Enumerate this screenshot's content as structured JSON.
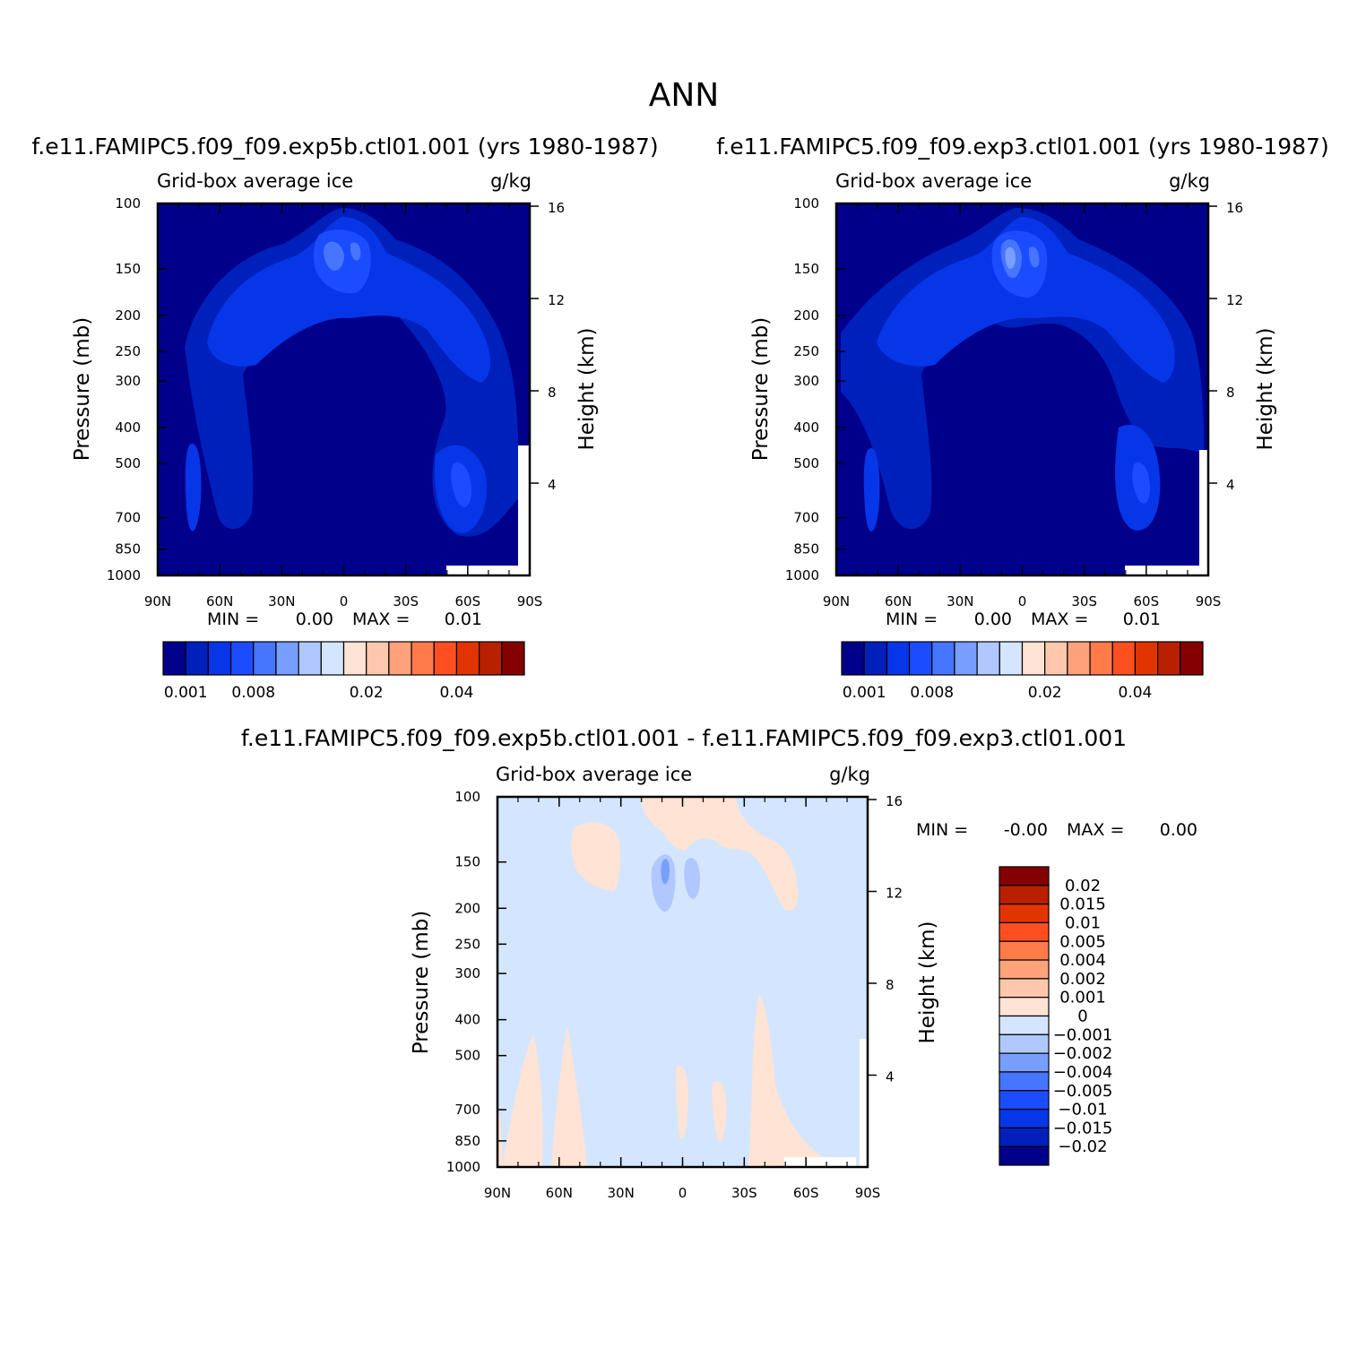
{
  "title": "ANN",
  "chart_data": [
    {
      "type": "heatmap",
      "subtitle": "f.e11.FAMIPC5.f09_f09.exp5b.ctl01.001 (yrs 1980-1987)",
      "left_label": "Grid-box average ice",
      "right_label": "g/kg",
      "ylabel": "Pressure (mb)",
      "ylabel_right": "Height (km)",
      "x_ticks": [
        "90N",
        "60N",
        "30N",
        "0",
        "30S",
        "60S",
        "90S"
      ],
      "y_ticks": [
        "100",
        "150",
        "200",
        "250",
        "300",
        "400",
        "500",
        "700",
        "850",
        "1000"
      ],
      "height_ticks": [
        "16",
        "12",
        "8",
        "4"
      ],
      "xlim": [
        90,
        -90
      ],
      "ylim": [
        1000,
        100
      ],
      "min_label": "MIN =",
      "min_value": "0.00",
      "max_label": "MAX =",
      "max_value": "0.01",
      "colorbar_labels": [
        "0.001",
        "0.008",
        "0.02",
        "0.04"
      ],
      "colorbar_colors": [
        "#00008a",
        "#0020bc",
        "#0636e8",
        "#1c4cff",
        "#4675ff",
        "#789fff",
        "#b0c8ff",
        "#d4e6ff",
        "#ffe3d4",
        "#ffc8ad",
        "#ffa37c",
        "#ff7b4a",
        "#ff4f20",
        "#e23400",
        "#b82000",
        "#850000"
      ]
    },
    {
      "type": "heatmap",
      "subtitle": "f.e11.FAMIPC5.f09_f09.exp3.ctl01.001 (yrs 1980-1987)",
      "left_label": "Grid-box average ice",
      "right_label": "g/kg",
      "ylabel": "Pressure (mb)",
      "ylabel_right": "Height (km)",
      "x_ticks": [
        "90N",
        "60N",
        "30N",
        "0",
        "30S",
        "60S",
        "90S"
      ],
      "y_ticks": [
        "100",
        "150",
        "200",
        "250",
        "300",
        "400",
        "500",
        "700",
        "850",
        "1000"
      ],
      "height_ticks": [
        "16",
        "12",
        "8",
        "4"
      ],
      "xlim": [
        90,
        -90
      ],
      "ylim": [
        1000,
        100
      ],
      "min_label": "MIN =",
      "min_value": "0.00",
      "max_label": "MAX =",
      "max_value": "0.01",
      "colorbar_labels": [
        "0.001",
        "0.008",
        "0.02",
        "0.04"
      ],
      "colorbar_colors": [
        "#00008a",
        "#0020bc",
        "#0636e8",
        "#1c4cff",
        "#4675ff",
        "#789fff",
        "#b0c8ff",
        "#d4e6ff",
        "#ffe3d4",
        "#ffc8ad",
        "#ffa37c",
        "#ff7b4a",
        "#ff4f20",
        "#e23400",
        "#b82000",
        "#850000"
      ]
    },
    {
      "type": "heatmap",
      "subtitle": "f.e11.FAMIPC5.f09_f09.exp5b.ctl01.001 - f.e11.FAMIPC5.f09_f09.exp3.ctl01.001",
      "left_label": "Grid-box average ice",
      "right_label": "g/kg",
      "ylabel": "Pressure (mb)",
      "ylabel_right": "Height (km)",
      "x_ticks": [
        "90N",
        "60N",
        "30N",
        "0",
        "30S",
        "60S",
        "90S"
      ],
      "y_ticks": [
        "100",
        "150",
        "200",
        "250",
        "300",
        "400",
        "500",
        "700",
        "850",
        "1000"
      ],
      "height_ticks": [
        "16",
        "12",
        "8",
        "4"
      ],
      "xlim": [
        90,
        -90
      ],
      "ylim": [
        1000,
        100
      ],
      "min_label": "MIN =",
      "min_value": "-0.00",
      "max_label": "MAX =",
      "max_value": "0.00",
      "colorbar_labels": [
        "0.02",
        "0.015",
        "0.01",
        "0.005",
        "0.004",
        "0.002",
        "0.001",
        "0",
        "-0.001",
        "-0.002",
        "-0.004",
        "-0.005",
        "-0.01",
        "-0.015",
        "-0.02"
      ],
      "colorbar_colors": [
        "#850000",
        "#b82000",
        "#e23400",
        "#ff4f20",
        "#ff7b4a",
        "#ffa37c",
        "#ffc8ad",
        "#ffe3d4",
        "#d4e6ff",
        "#b0c8ff",
        "#789fff",
        "#4675ff",
        "#1c4cff",
        "#0636e8",
        "#0020bc",
        "#00008a"
      ]
    }
  ]
}
